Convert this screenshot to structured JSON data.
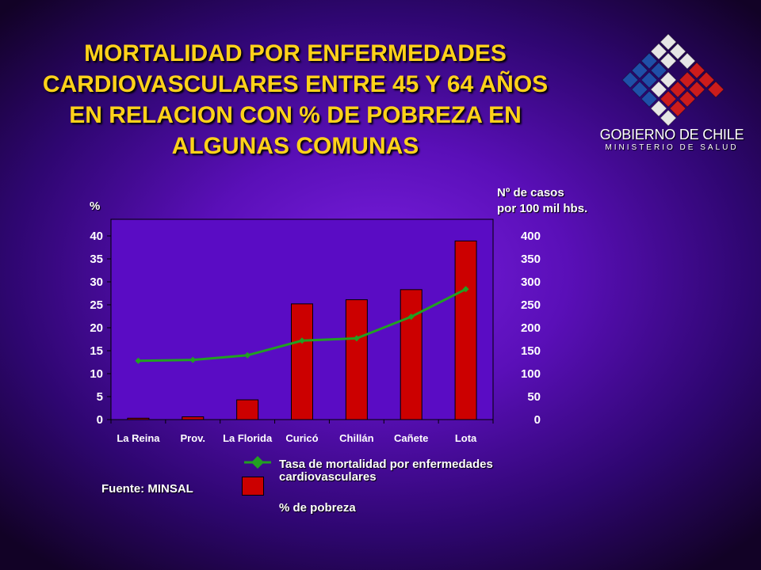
{
  "title": {
    "line1": "MORTALIDAD POR ENFERMEDADES",
    "line2": "CARDIOVASCULARES ENTRE 45 Y 64 AÑOS",
    "line3": "EN RELACION CON % DE POBREZA EN",
    "line4": "ALGUNAS COMUNAS"
  },
  "logo": {
    "title": "GOBIERNO DE CHILE",
    "subtitle": "MINISTERIO DE SALUD"
  },
  "source": "Fuente: MINSAL",
  "colors": {
    "bar": "#cc0000",
    "line": "#22a022",
    "title": "#ffd21a"
  },
  "chart_data": {
    "type": "bar",
    "categories": [
      "La Reina",
      "Prov.",
      "La Florida",
      "Curicó",
      "Chillán",
      "Cañete",
      "Lota"
    ],
    "series": [
      {
        "name": "% de pobreza",
        "type": "bar",
        "axis": "left",
        "values": [
          0.3,
          0.6,
          4.3,
          25.2,
          26.1,
          28.3,
          38.9
        ]
      },
      {
        "name": "Tasa de mortalidad por enfermedades cardiovasculares",
        "type": "line",
        "axis": "right",
        "values": [
          128,
          130,
          140,
          172,
          177,
          224,
          284
        ]
      }
    ],
    "ylabel_left": "%",
    "ylabel_right_line1": "Nº de casos",
    "ylabel_right_line2": "por 100 mil hbs.",
    "ylim_left": [
      0,
      40
    ],
    "yticks_left": [
      "0",
      "5",
      "10",
      "15",
      "20",
      "25",
      "30",
      "35",
      "40"
    ],
    "ylim_right": [
      0,
      400
    ],
    "yticks_right": [
      "0",
      "50",
      "100",
      "150",
      "200",
      "250",
      "300",
      "350",
      "400"
    ],
    "grid": false,
    "legend_position": "bottom"
  }
}
